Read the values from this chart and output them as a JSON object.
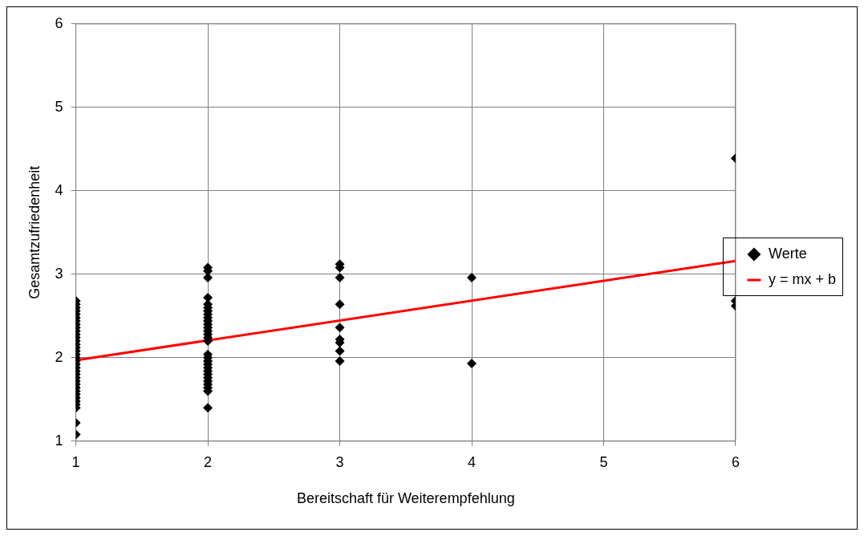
{
  "chart_data": {
    "type": "scatter",
    "xlabel": "Bereitschaft für Weiterempfehlung",
    "ylabel": "Gesamtzufriedenheit",
    "xlim": [
      1,
      6
    ],
    "ylim": [
      1,
      6
    ],
    "xticks": [
      1,
      2,
      3,
      4,
      5,
      6
    ],
    "yticks": [
      1,
      2,
      3,
      4,
      5,
      6
    ],
    "grid": true,
    "legend": "right",
    "series": [
      {
        "name": "Werte",
        "color": "#000000",
        "marker": "diamond",
        "x": [
          1,
          1,
          1,
          1,
          1,
          1,
          1,
          1,
          1,
          1,
          1,
          1,
          1,
          1,
          1,
          1,
          1,
          1,
          1,
          1,
          1,
          1,
          1,
          1,
          1,
          1,
          1,
          1,
          1,
          1,
          1,
          1,
          1,
          1,
          1,
          2,
          2,
          2,
          2,
          2,
          2,
          2,
          2,
          2,
          2,
          2,
          2,
          2,
          2,
          2,
          2,
          2,
          2,
          2,
          2,
          2,
          2,
          2,
          2,
          2,
          2,
          2,
          2,
          2,
          3,
          3,
          3,
          3,
          3,
          3,
          3,
          3,
          3,
          4,
          4,
          6,
          6,
          6
        ],
        "values": [
          2.68,
          2.64,
          2.6,
          2.56,
          2.52,
          2.48,
          2.44,
          2.4,
          2.36,
          2.32,
          2.28,
          2.24,
          2.2,
          2.16,
          2.12,
          2.08,
          2.04,
          2.0,
          1.96,
          1.92,
          1.88,
          1.84,
          1.8,
          1.76,
          1.72,
          1.68,
          1.64,
          1.6,
          1.56,
          1.52,
          1.48,
          1.44,
          1.4,
          1.22,
          1.08,
          3.08,
          3.04,
          2.96,
          2.72,
          2.64,
          2.6,
          2.56,
          2.52,
          2.48,
          2.44,
          2.4,
          2.36,
          2.32,
          2.28,
          2.24,
          2.2,
          2.04,
          2.0,
          1.96,
          1.92,
          1.88,
          1.84,
          1.8,
          1.76,
          1.72,
          1.68,
          1.64,
          1.6,
          1.4,
          3.12,
          3.08,
          2.96,
          2.64,
          2.36,
          2.22,
          2.18,
          2.08,
          1.96,
          2.96,
          1.93,
          4.39,
          2.68,
          2.62
        ]
      },
      {
        "name": "y = mx + b",
        "type": "line",
        "color": "#ff0000",
        "marker": "none",
        "line_style": "solid",
        "x": [
          1,
          6
        ],
        "values": [
          1.97,
          3.16
        ]
      }
    ]
  }
}
